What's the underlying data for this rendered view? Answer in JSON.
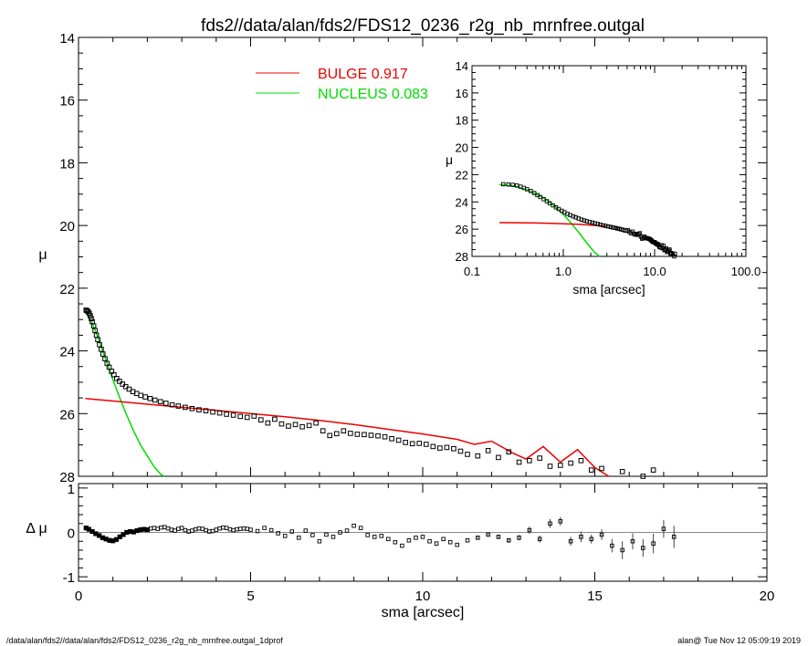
{
  "title": "fds2//data/alan/fds2/FDS12_0236_r2g_nb_mrnfree.outgal",
  "footer_left": "/data/alan/fds2//data/alan/fds2/FDS12_0236_r2g_nb_mrnfree.outgal_1dprof",
  "footer_right": "alan@  Tue Nov 12 05:09:19 2019",
  "colors": {
    "bulge": "#ee0000",
    "nucleus": "#00dd00",
    "data": "#000000"
  },
  "chart_data": [
    {
      "type": "scatter",
      "panel": "main",
      "xlabel": "sma [arcsec]",
      "ylabel": "μ",
      "xlim": [
        0,
        20
      ],
      "ylim": [
        28,
        14
      ],
      "y_inverted": true,
      "x_ticks": [
        "0",
        "5",
        "10",
        "15",
        "20"
      ],
      "y_ticks": [
        "14",
        "16",
        "18",
        "20",
        "22",
        "24",
        "26",
        "28"
      ],
      "legend": [
        {
          "name": "BULGE",
          "value": "0.917",
          "color": "#ee0000"
        },
        {
          "name": "NUCLEUS",
          "value": "0.083",
          "color": "#00dd00"
        }
      ],
      "legend_position": "top-center",
      "series": [
        {
          "name": "data",
          "marker": "square",
          "x": [
            0.22,
            0.25,
            0.28,
            0.31,
            0.34,
            0.37,
            0.4,
            0.44,
            0.48,
            0.52,
            0.56,
            0.61,
            0.66,
            0.71,
            0.77,
            0.83,
            0.89,
            0.96,
            1.03,
            1.11,
            1.19,
            1.28,
            1.37,
            1.47,
            1.58,
            1.69,
            1.81,
            1.94,
            2.08,
            2.22,
            2.38,
            2.54,
            2.72,
            2.9,
            3.1,
            3.3,
            3.5,
            3.7,
            3.9,
            4.1,
            4.3,
            4.5,
            4.7,
            4.9,
            5.1,
            5.3,
            5.5,
            5.7,
            5.9,
            6.1,
            6.3,
            6.5,
            6.7,
            6.9,
            7.1,
            7.3,
            7.5,
            7.7,
            7.9,
            8.1,
            8.3,
            8.5,
            8.7,
            8.9,
            9.1,
            9.3,
            9.5,
            9.7,
            9.9,
            10.1,
            10.3,
            10.5,
            10.7,
            10.9,
            11.1,
            11.3,
            11.6,
            11.9,
            12.2,
            12.5,
            12.8,
            13.1,
            13.4,
            13.7,
            14.0,
            14.3,
            14.6,
            14.9,
            15.2,
            15.5,
            15.8,
            16.1,
            16.4,
            16.7
          ],
          "y": [
            22.7,
            22.72,
            22.75,
            22.8,
            22.88,
            22.97,
            23.07,
            23.2,
            23.35,
            23.5,
            23.64,
            23.8,
            23.95,
            24.1,
            24.25,
            24.4,
            24.52,
            24.65,
            24.76,
            24.88,
            24.97,
            25.06,
            25.14,
            25.22,
            25.3,
            25.36,
            25.42,
            25.47,
            25.52,
            25.57,
            25.62,
            25.67,
            25.72,
            25.76,
            25.8,
            25.84,
            25.88,
            25.91,
            25.95,
            25.98,
            26.02,
            26.05,
            26.09,
            26.12,
            26.08,
            26.2,
            26.3,
            26.18,
            26.33,
            26.4,
            26.35,
            26.42,
            26.38,
            26.3,
            26.55,
            26.7,
            26.64,
            26.55,
            26.63,
            26.66,
            26.67,
            26.69,
            26.71,
            26.74,
            26.8,
            26.85,
            26.92,
            26.96,
            26.95,
            26.98,
            27.05,
            27.1,
            27.08,
            27.12,
            27.2,
            27.3,
            27.35,
            27.18,
            27.4,
            27.22,
            27.55,
            27.5,
            27.42,
            27.68,
            27.65,
            27.58,
            27.5,
            27.8,
            27.75,
            28.1,
            27.85,
            28.3,
            28.0,
            27.8
          ]
        },
        {
          "name": "BULGE",
          "line": true,
          "x": [
            0.2,
            1,
            2,
            3,
            4,
            5,
            6,
            7,
            8,
            9,
            10,
            11,
            11.5,
            12,
            12.6,
            13,
            13.5,
            14,
            14.5,
            15,
            15.4
          ],
          "y": [
            25.52,
            25.6,
            25.7,
            25.8,
            25.9,
            26.0,
            26.1,
            26.22,
            26.35,
            26.5,
            26.65,
            26.82,
            26.98,
            26.88,
            27.25,
            27.45,
            27.05,
            27.55,
            27.15,
            27.72,
            28.0
          ]
        },
        {
          "name": "NUCLEUS",
          "line": true,
          "x": [
            0.2,
            0.4,
            0.6,
            0.8,
            1.0,
            1.2,
            1.4,
            1.6,
            1.8,
            2.0,
            2.2,
            2.4,
            2.5
          ],
          "y": [
            22.72,
            23.12,
            23.68,
            24.3,
            24.92,
            25.5,
            26.05,
            26.55,
            27.0,
            27.35,
            27.7,
            27.95,
            28.0
          ]
        }
      ]
    },
    {
      "type": "scatter",
      "panel": "residual",
      "xlabel": "sma [arcsec]",
      "ylabel": "Δ μ",
      "xlim": [
        0,
        20
      ],
      "ylim": [
        -1.1,
        1.1
      ],
      "y_ticks": [
        "1",
        "0",
        "-1"
      ],
      "series": [
        {
          "name": "residuals",
          "marker": "square",
          "x": [
            0.22,
            0.3,
            0.4,
            0.5,
            0.6,
            0.7,
            0.8,
            0.9,
            1.0,
            1.1,
            1.2,
            1.3,
            1.4,
            1.5,
            1.6,
            1.7,
            1.8,
            1.9,
            2.0,
            2.1,
            2.2,
            2.3,
            2.4,
            2.5,
            2.6,
            2.7,
            2.8,
            2.9,
            3.0,
            3.1,
            3.2,
            3.3,
            3.4,
            3.5,
            3.6,
            3.7,
            3.8,
            3.9,
            4.0,
            4.1,
            4.2,
            4.3,
            4.4,
            4.5,
            4.6,
            4.7,
            4.8,
            4.9,
            5.0,
            5.2,
            5.4,
            5.6,
            5.8,
            6.0,
            6.2,
            6.4,
            6.6,
            6.8,
            7.0,
            7.2,
            7.4,
            7.6,
            7.8,
            8.0,
            8.2,
            8.4,
            8.6,
            8.8,
            9.0,
            9.2,
            9.4,
            9.6,
            9.8,
            10.0,
            10.2,
            10.4,
            10.6,
            10.8,
            11.0,
            11.3,
            11.6,
            11.9,
            12.2,
            12.5,
            12.8,
            13.1,
            13.4,
            13.7,
            14.0,
            14.3,
            14.6,
            14.9,
            15.2,
            15.5,
            15.8,
            16.1,
            16.4,
            16.7,
            17.0,
            17.3
          ],
          "y": [
            0.1,
            0.07,
            0.02,
            -0.03,
            -0.07,
            -0.12,
            -0.15,
            -0.18,
            -0.19,
            -0.16,
            -0.1,
            -0.05,
            0.0,
            0.02,
            0.01,
            0.04,
            0.06,
            0.07,
            0.06,
            0.09,
            0.1,
            0.08,
            0.11,
            0.12,
            0.09,
            0.06,
            0.04,
            0.08,
            0.1,
            0.05,
            0.02,
            0.04,
            0.07,
            0.09,
            0.08,
            0.05,
            0.02,
            0.03,
            0.06,
            0.09,
            0.11,
            0.1,
            0.07,
            0.05,
            0.07,
            0.08,
            0.09,
            0.08,
            0.06,
            0.03,
            0.1,
            0.05,
            -0.02,
            -0.08,
            0.02,
            -0.12,
            0.04,
            -0.06,
            -0.2,
            -0.05,
            -0.1,
            0.0,
            0.04,
            0.15,
            0.1,
            -0.06,
            -0.1,
            -0.08,
            -0.15,
            -0.22,
            -0.3,
            -0.18,
            -0.12,
            -0.1,
            -0.2,
            -0.25,
            -0.15,
            -0.22,
            -0.28,
            -0.18,
            -0.12,
            -0.05,
            -0.1,
            -0.18,
            -0.12,
            0.05,
            -0.15,
            0.2,
            0.25,
            -0.2,
            -0.1,
            -0.15,
            -0.05,
            -0.3,
            -0.4,
            -0.2,
            -0.35,
            -0.25,
            0.08,
            -0.1
          ],
          "err": [
            0,
            0,
            0,
            0,
            0,
            0,
            0,
            0,
            0,
            0,
            0,
            0,
            0,
            0,
            0,
            0,
            0,
            0,
            0,
            0,
            0,
            0,
            0,
            0,
            0,
            0,
            0,
            0,
            0,
            0,
            0,
            0,
            0,
            0,
            0,
            0,
            0,
            0,
            0,
            0,
            0,
            0,
            0,
            0,
            0,
            0,
            0,
            0,
            0,
            0,
            0,
            0,
            0,
            0,
            0,
            0,
            0,
            0,
            0,
            0,
            0,
            0,
            0,
            0,
            0,
            0,
            0,
            0,
            0,
            0,
            0,
            0,
            0,
            0,
            0,
            0,
            0,
            0,
            0,
            0,
            0.03,
            0.04,
            0.05,
            0.05,
            0.06,
            0.08,
            0.08,
            0.1,
            0.1,
            0.1,
            0.12,
            0.1,
            0.12,
            0.15,
            0.2,
            0.18,
            0.2,
            0.22,
            0.2,
            0.25
          ]
        }
      ]
    },
    {
      "type": "scatter",
      "panel": "inset",
      "xlabel": "sma [arcsec]",
      "ylabel": "μ",
      "x_scale": "log",
      "xlim": [
        0.1,
        100.0
      ],
      "ylim": [
        28,
        14
      ],
      "y_inverted": true,
      "x_ticks": [
        "0.1",
        "1.0",
        "10.0",
        "100.0"
      ],
      "y_ticks": [
        "14",
        "16",
        "18",
        "20",
        "22",
        "24",
        "26",
        "28"
      ],
      "series": [
        {
          "name": "data",
          "marker": "square",
          "x": [
            0.22,
            0.25,
            0.28,
            0.31,
            0.34,
            0.37,
            0.4,
            0.44,
            0.48,
            0.52,
            0.56,
            0.61,
            0.66,
            0.71,
            0.77,
            0.83,
            0.89,
            0.96,
            1.03,
            1.11,
            1.19,
            1.28,
            1.37,
            1.47,
            1.58,
            1.69,
            1.81,
            1.94,
            2.08,
            2.22,
            2.38,
            2.54,
            2.72,
            2.9,
            3.1,
            3.3,
            3.5,
            3.7,
            3.9,
            4.1,
            4.3,
            4.5,
            4.7,
            4.9,
            5.1,
            5.3,
            5.5,
            5.7,
            5.9,
            6.1,
            6.3,
            6.5,
            6.7,
            6.9,
            7.1,
            7.3,
            7.5,
            7.7,
            7.9,
            8.1,
            8.3,
            8.5,
            8.7,
            8.9,
            9.1,
            9.3,
            9.5,
            9.7,
            9.9,
            10.1,
            10.3,
            10.5,
            10.7,
            10.9,
            11.1,
            11.3,
            11.6,
            11.9,
            12.2,
            12.5,
            12.8,
            13.1,
            13.4,
            13.7,
            14.0,
            14.3,
            14.6,
            14.9,
            15.2,
            15.5,
            15.8,
            16.1,
            16.4,
            16.7
          ],
          "y": [
            22.7,
            22.72,
            22.75,
            22.8,
            22.88,
            22.97,
            23.07,
            23.2,
            23.35,
            23.5,
            23.64,
            23.8,
            23.95,
            24.1,
            24.25,
            24.4,
            24.52,
            24.65,
            24.76,
            24.88,
            24.97,
            25.06,
            25.14,
            25.22,
            25.3,
            25.36,
            25.42,
            25.47,
            25.52,
            25.57,
            25.62,
            25.67,
            25.72,
            25.76,
            25.8,
            25.84,
            25.88,
            25.91,
            25.95,
            25.98,
            26.02,
            26.05,
            26.09,
            26.12,
            26.08,
            26.2,
            26.3,
            26.18,
            26.33,
            26.4,
            26.35,
            26.42,
            26.38,
            26.3,
            26.55,
            26.7,
            26.64,
            26.55,
            26.63,
            26.66,
            26.67,
            26.69,
            26.71,
            26.74,
            26.8,
            26.85,
            26.92,
            26.96,
            26.95,
            26.98,
            27.05,
            27.1,
            27.08,
            27.12,
            27.2,
            27.3,
            27.35,
            27.18,
            27.4,
            27.22,
            27.55,
            27.5,
            27.42,
            27.68,
            27.65,
            27.58,
            27.5,
            27.8,
            27.75,
            28.1,
            27.85,
            28.3,
            28.0,
            27.8
          ]
        },
        {
          "name": "BULGE",
          "line": true,
          "x": [
            0.2,
            0.3,
            0.5,
            0.8,
            1.0,
            1.5,
            2.0,
            2.5,
            3.0
          ],
          "y": [
            25.52,
            25.53,
            25.55,
            25.58,
            25.6,
            25.65,
            25.7,
            25.75,
            25.8
          ]
        },
        {
          "name": "NUCLEUS",
          "line": true,
          "x": [
            0.2,
            0.3,
            0.4,
            0.6,
            0.8,
            1.0,
            1.2,
            1.5,
            1.8,
            2.2,
            2.5
          ],
          "y": [
            22.72,
            22.85,
            23.12,
            23.68,
            24.3,
            24.92,
            25.5,
            26.3,
            27.0,
            27.7,
            28.0
          ]
        }
      ]
    }
  ]
}
